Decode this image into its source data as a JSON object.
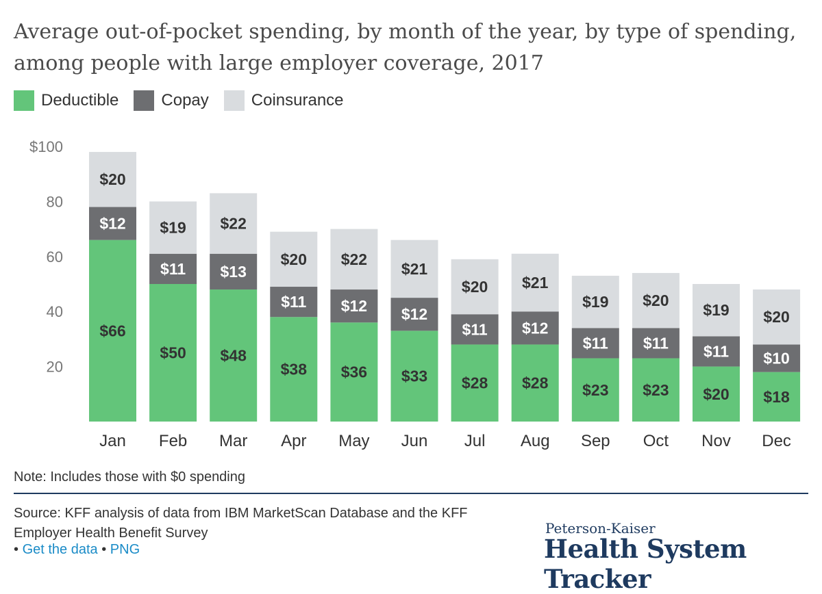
{
  "title": "Average out-of-pocket spending, by month of the year, by type of spending, among people with large employer coverage, 2017",
  "legend": [
    {
      "label": "Deductible",
      "color": "#63c57a"
    },
    {
      "label": "Copay",
      "color": "#6d6e71"
    },
    {
      "label": "Coinsurance",
      "color": "#d9dcdf"
    }
  ],
  "chart_data": {
    "type": "bar",
    "stacked": true,
    "categories": [
      "Jan",
      "Feb",
      "Mar",
      "Apr",
      "May",
      "Jun",
      "Jul",
      "Aug",
      "Sep",
      "Oct",
      "Nov",
      "Dec"
    ],
    "series": [
      {
        "name": "Deductible",
        "color": "#63c57a",
        "values": [
          66,
          50,
          48,
          38,
          36,
          33,
          28,
          28,
          23,
          23,
          20,
          18
        ],
        "labels": [
          "$66",
          "$50",
          "$48",
          "$38",
          "$36",
          "$33",
          "$28",
          "$28",
          "$23",
          "$23",
          "$20",
          "$18"
        ]
      },
      {
        "name": "Copay",
        "color": "#6d6e71",
        "values": [
          12,
          11,
          13,
          11,
          12,
          12,
          11,
          12,
          11,
          11,
          11,
          10
        ],
        "labels": [
          "$12",
          "$11",
          "$13",
          "$11",
          "$12",
          "$12",
          "$11",
          "$12",
          "$11",
          "$11",
          "$11",
          "$10"
        ]
      },
      {
        "name": "Coinsurance",
        "color": "#d9dcdf",
        "values": [
          20,
          19,
          22,
          20,
          22,
          21,
          20,
          21,
          19,
          20,
          19,
          20
        ],
        "labels": [
          "$20",
          "$19",
          "$22",
          "$20",
          "$22",
          "$21",
          "$20",
          "$21",
          "$19",
          "$20",
          "$19",
          "$20"
        ]
      }
    ],
    "yticks": [
      20,
      40,
      60,
      80,
      100
    ],
    "ytick_labels": [
      "20",
      "40",
      "60",
      "80",
      "$100"
    ],
    "ylim": [
      0,
      100
    ],
    "grid": false,
    "legend_position": "top-left"
  },
  "note": "Note: Includes those with $0 spending",
  "source": "Source: KFF analysis of data from IBM MarketScan Database and the KFF Employer Health Benefit Survey",
  "links": {
    "bullet": "•",
    "get_data": "Get the data",
    "png": "PNG"
  },
  "brand": {
    "top": "Peterson-Kaiser",
    "main": "Health System Tracker",
    "color": "#1e3a5f"
  }
}
